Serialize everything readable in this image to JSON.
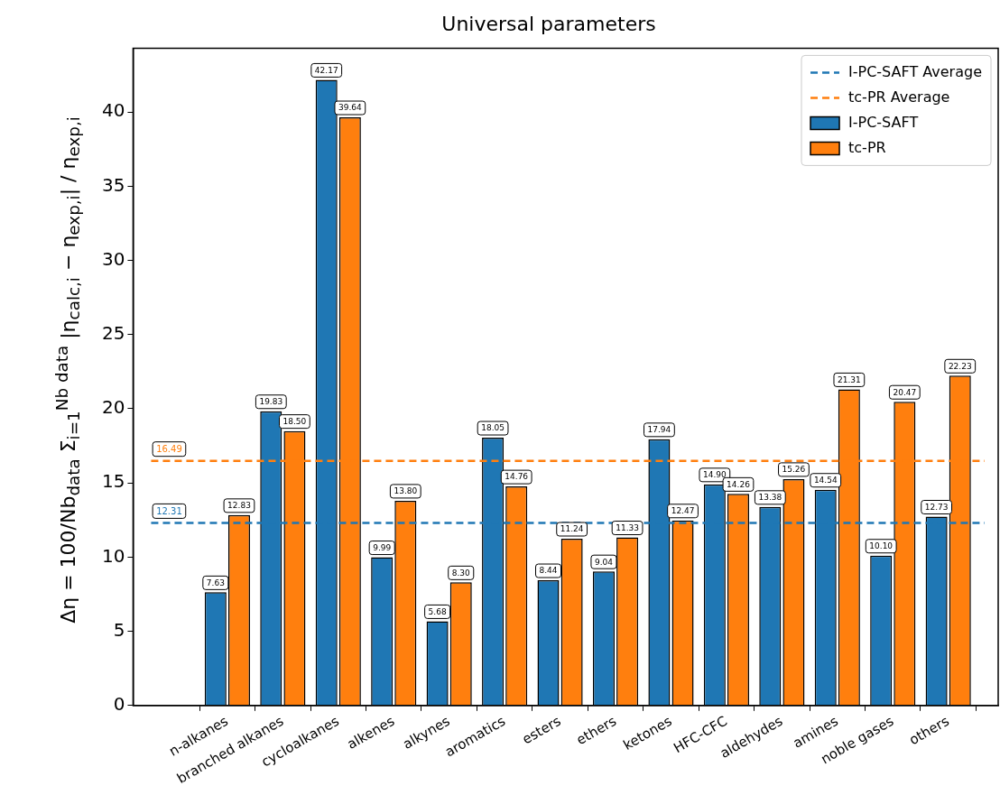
{
  "chart_data": {
    "type": "bar",
    "title": "Universal parameters",
    "ylabel": "Δη = 100/Nb$_{data}$ Σ$_{i=1}$$^{Nb data}$ |η$_{calc,i}$ − η$_{exp,i}$| / η$_{exp,i}$",
    "categories": [
      "n-alkanes",
      "branched alkanes",
      "cycloalkanes",
      "alkenes",
      "alkynes",
      "aromatics",
      "esters",
      "ethers",
      "ketones",
      "HFC-CFC",
      "aldehydes",
      "amines",
      "noble gases",
      "others"
    ],
    "series": [
      {
        "name": "I-PC-SAFT",
        "color": "#1f77b4",
        "values": [
          7.63,
          19.83,
          42.17,
          9.99,
          5.68,
          18.05,
          8.44,
          9.04,
          17.94,
          14.9,
          13.38,
          14.54,
          10.1,
          12.73
        ],
        "value_labels": [
          "7.63",
          "19.83",
          "42.17",
          "9.99",
          "5.68",
          "18.05",
          "8.44",
          "9.04",
          "17.94",
          "14.90",
          "13.38",
          "14.54",
          "10.10",
          "12.73"
        ]
      },
      {
        "name": "tc-PR",
        "color": "#ff7f0e",
        "values": [
          12.83,
          18.5,
          39.64,
          13.8,
          8.3,
          14.76,
          11.24,
          11.33,
          12.47,
          14.26,
          15.26,
          21.31,
          20.47,
          22.23
        ],
        "value_labels": [
          "12.83",
          "18.50",
          "39.64",
          "13.80",
          "8.30",
          "14.76",
          "11.24",
          "11.33",
          "12.47",
          "14.26",
          "15.26",
          "21.31",
          "20.47",
          "22.23"
        ]
      }
    ],
    "ref_lines": [
      {
        "axis": "y",
        "value": 12.31,
        "label": "I-PC-SAFT Average",
        "color": "#1f77b4",
        "line_style": "dashed"
      },
      {
        "axis": "y",
        "value": 16.49,
        "label": "tc-PR Average",
        "color": "#ff7f0e",
        "line_style": "dashed"
      }
    ],
    "annotations": [
      {
        "text": "12.31",
        "y": 12.31
      },
      {
        "text": "16.49",
        "y": 16.49
      }
    ],
    "ylim": [
      0,
      44.3
    ],
    "yticks": [
      0,
      5,
      10,
      15,
      20,
      25,
      30,
      35,
      40
    ],
    "grid": false,
    "legend": "top right"
  }
}
